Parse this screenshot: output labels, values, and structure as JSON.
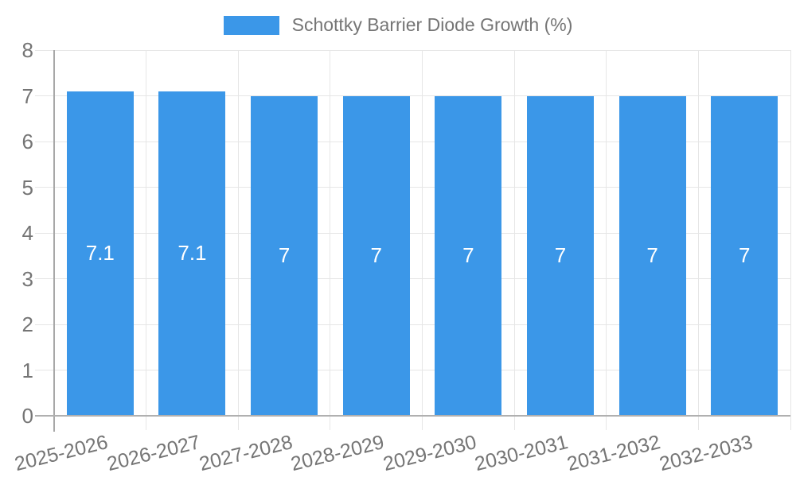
{
  "legend": {
    "label": "Schottky Barrier Diode Growth (%)",
    "swatch_color": "#3b97e8"
  },
  "chart_data": {
    "type": "bar",
    "title": "Schottky Barrier Diode Growth (%)",
    "categories": [
      "2025-2026",
      "2026-2027",
      "2027-2028",
      "2028-2029",
      "2029-2030",
      "2030-2031",
      "2031-2032",
      "2032-2033"
    ],
    "series": [
      {
        "name": "Schottky Barrier Diode Growth (%)",
        "values": [
          7.1,
          7.1,
          7,
          7,
          7,
          7,
          7,
          7
        ]
      }
    ],
    "bar_labels": [
      "7.1",
      "7.1",
      "7",
      "7",
      "7",
      "7",
      "7",
      "7"
    ],
    "xlabel": "",
    "ylabel": "",
    "ylim": [
      0,
      8
    ],
    "y_ticks": [
      0,
      1,
      2,
      3,
      4,
      5,
      6,
      7,
      8
    ],
    "grid": true,
    "legend_position": "top",
    "colors": {
      "bar": "#3b97e8",
      "grid": "#e6e6e6",
      "y_axis_line": "#a8a8a8",
      "baseline": "#b0b0b0",
      "axis_label_text": "#757575",
      "bar_label_text": "#ffffff",
      "background": "#ffffff"
    }
  }
}
